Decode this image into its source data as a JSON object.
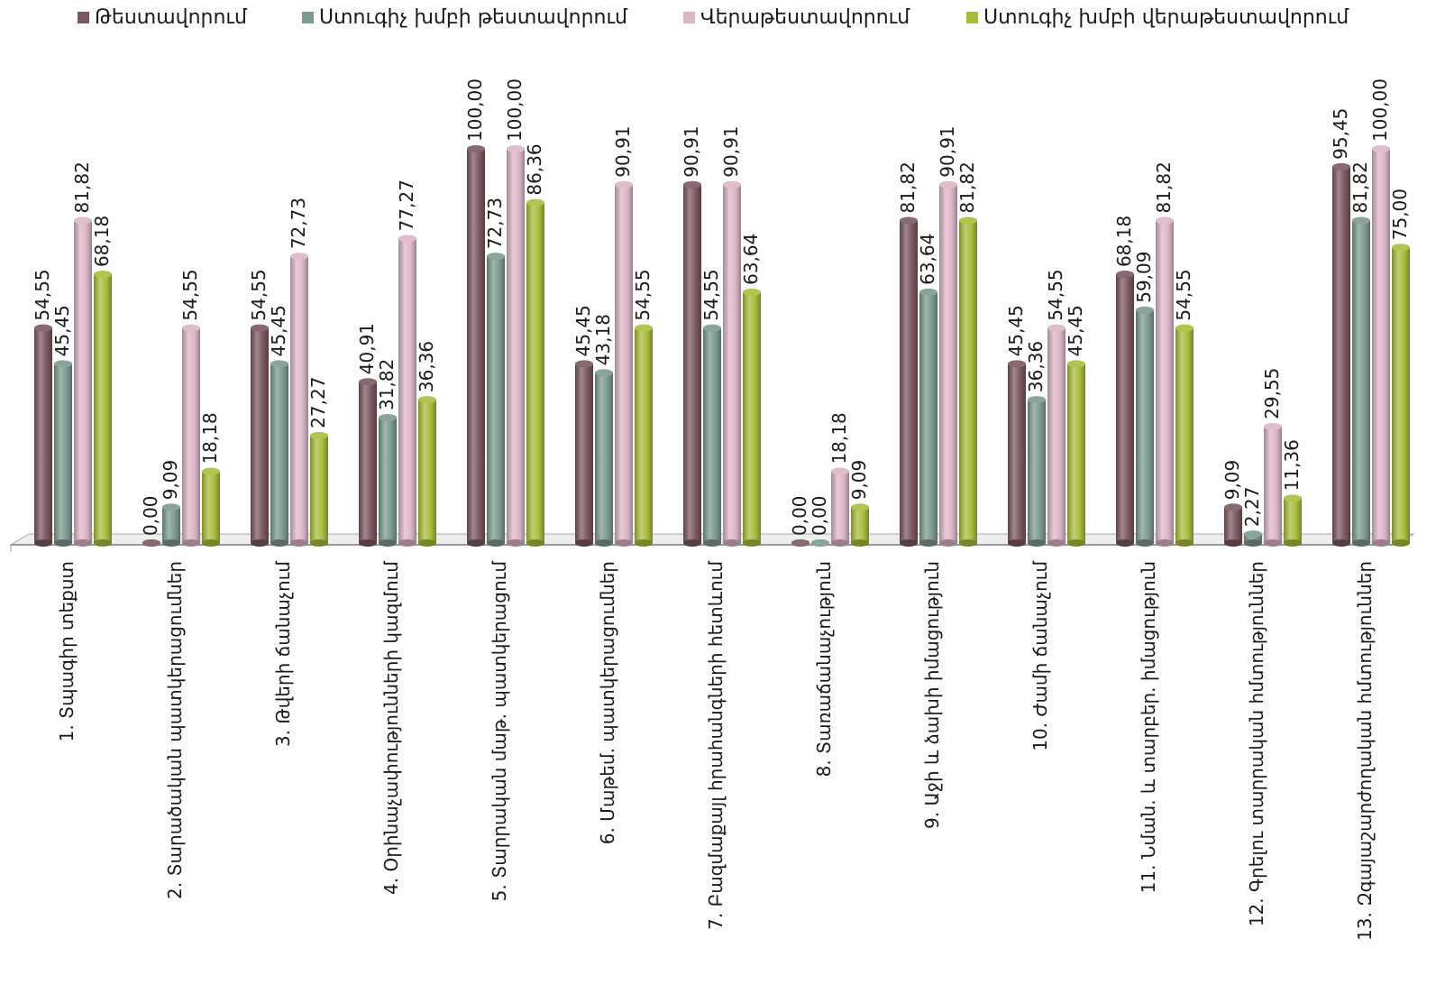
{
  "chart_data": {
    "type": "bar",
    "title": "",
    "xlabel": "",
    "ylabel": "",
    "ylim": [
      0,
      100
    ],
    "grid": false,
    "legend_position": "top",
    "categories": [
      "1. Տպագիր տեքստ",
      "2. Տարածական պատկերացումներ",
      "3. Թվերի ճանաչում",
      "4. Օրինաչափությունների կազմում",
      "5. Տարրական մաթ. պատկերացում",
      "6. Մաթեմ. պատկերացումներ",
      "7. Բազմաքայլ հրահանգների հետևում",
      "8. Տառաճանաչություն",
      "9. Աջի և ձախի իմացություն",
      "10. Ժամի ճանաչում",
      "11. Նման. և տարբեր. իմացություն",
      "12. Գրելու տարրական հմտություններ",
      "13. Զգայաշարժողական հմտություններ"
    ],
    "series": [
      {
        "name": "Թեստավորում",
        "color": "#7b585f",
        "values": [
          54.55,
          0.0,
          54.55,
          40.91,
          100.0,
          45.45,
          90.91,
          0.0,
          81.82,
          45.45,
          68.18,
          9.09,
          95.45
        ]
      },
      {
        "name": "Ստուգիչ խմբի թեստավորում",
        "color": "#7d9a8f",
        "values": [
          45.45,
          9.09,
          45.45,
          31.82,
          72.73,
          43.18,
          54.55,
          0.0,
          63.64,
          36.36,
          59.09,
          2.27,
          81.82
        ]
      },
      {
        "name": "Վերաթեստավորում",
        "color": "#dcb6c6",
        "values": [
          81.82,
          54.55,
          72.73,
          77.27,
          100.0,
          90.91,
          90.91,
          18.18,
          90.91,
          54.55,
          81.82,
          29.55,
          100.0
        ]
      },
      {
        "name": "Ստուգիչ խմբի վերաթեստավորում",
        "color": "#a9bd3c",
        "values": [
          68.18,
          18.18,
          27.27,
          36.36,
          86.36,
          54.55,
          63.64,
          9.09,
          81.82,
          45.45,
          54.55,
          11.36,
          75.0
        ]
      }
    ]
  }
}
